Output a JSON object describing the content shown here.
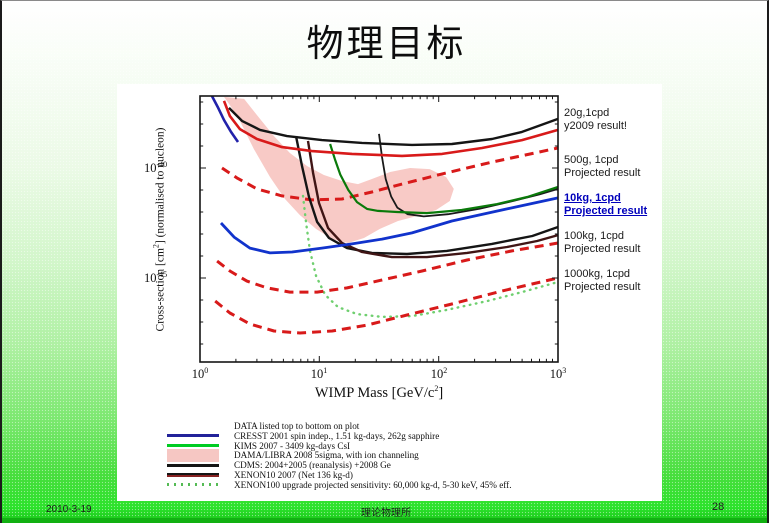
{
  "slide": {
    "title": "物理目标"
  },
  "footer": {
    "date": "2010-3-19",
    "org": "理论物理所",
    "page": "28"
  },
  "annotations": [
    {
      "key": "20g",
      "line1": "20g,1cpd",
      "line2": "y2009 result!",
      "highlight": false
    },
    {
      "key": "500g",
      "line1": "500g, 1cpd",
      "line2": "Projected result",
      "highlight": false
    },
    {
      "key": "10kg",
      "line1": "10kg, 1cpd",
      "line2": "Projected result",
      "highlight": true
    },
    {
      "key": "100kg",
      "line1": "100kg, 1cpd",
      "line2": "Projected result",
      "highlight": false
    },
    {
      "key": "1000kg",
      "line1": "1000kg, 1cpd",
      "line2": "Projected result",
      "highlight": false
    }
  ],
  "legend": {
    "rows": [
      {
        "swatch": "none",
        "color": "",
        "text": "DATA listed top to bottom on plot"
      },
      {
        "swatch": "line",
        "color": "#222299",
        "text": "CRESST 2001 spin indep., 1.51 kg-days, 262g sapphire"
      },
      {
        "swatch": "line",
        "color": "#00cc22",
        "text": "KIMS 2007 - 3409 kg-days CsI"
      },
      {
        "swatch": "rect",
        "color": "#f6c7c3",
        "text": "DAMA/LIBRA 2008 5sigma, with ion channeling"
      },
      {
        "swatch": "line",
        "color": "#151515",
        "text": "CDMS: 2004+2005 (reanalysis) +2008 Ge"
      },
      {
        "swatch": "dual",
        "color": "#151515",
        "color2": "#882222",
        "text": "XENON10 2007 (Net 136 kg-d)"
      },
      {
        "swatch": "dots",
        "color": "#55bb55",
        "text": "XENON100 upgrade projected sensitivity: 60,000 kg-d, 5-30 keV, 45% eff."
      }
    ]
  },
  "axes": {
    "x": {
      "title_base": "WIMP Mass [GeV/c",
      "title_sup": "2",
      "title_end": "]",
      "ticks": [
        {
          "base": "10",
          "sup": "0"
        },
        {
          "base": "10",
          "sup": "1"
        },
        {
          "base": "10",
          "sup": "2"
        },
        {
          "base": "10",
          "sup": "3"
        }
      ]
    },
    "y": {
      "title_base": "Cross-section [cm",
      "title_sup": "2",
      "title_end": "] (normalised to nucleon)",
      "ticks": [
        {
          "base": "10",
          "sup": "-40"
        },
        {
          "base": "10",
          "sup": "-45"
        }
      ]
    }
  },
  "chart_data": {
    "type": "line",
    "title": "",
    "xlabel": "WIMP Mass [GeV/c^2]",
    "ylabel": "Cross-section [cm^2] (normalised to nucleon)",
    "x_axis": {
      "scale": "log",
      "min": 1,
      "max": 1000,
      "major_ticks": [
        1,
        10,
        100,
        1000
      ]
    },
    "y_axis": {
      "scale": "log",
      "min_exp": -48.9,
      "max_exp": -36.7,
      "labeled_exps": [
        -40,
        -45
      ]
    },
    "grid": false,
    "legend_position": "below",
    "region": {
      "name": "DAMA/LIBRA 2008 5sigma allowed region (ion channeling)",
      "color": "#f8cac6",
      "points": [
        [
          1.59,
          -36.77
        ],
        [
          2.34,
          -36.86
        ],
        [
          3.18,
          -37.77
        ],
        [
          4.17,
          -38.55
        ],
        [
          5.67,
          -39.32
        ],
        [
          7.88,
          -39.91
        ],
        [
          10.93,
          -40.32
        ],
        [
          15.5,
          -40.59
        ],
        [
          21.1,
          -40.73
        ],
        [
          27.6,
          -40.5
        ],
        [
          39.2,
          -40.18
        ],
        [
          57.5,
          -40.0
        ],
        [
          84.2,
          -40.05
        ],
        [
          115.5,
          -40.41
        ],
        [
          134,
          -40.95
        ],
        [
          124,
          -41.5
        ],
        [
          95.2,
          -41.91
        ],
        [
          66,
          -42.18
        ],
        [
          45.6,
          -42.41
        ],
        [
          32.2,
          -42.77
        ],
        [
          23.7,
          -43.18
        ],
        [
          17.4,
          -43.41
        ],
        [
          12.8,
          -43.23
        ],
        [
          9.38,
          -42.77
        ],
        [
          6.88,
          -42.14
        ],
        [
          5.16,
          -41.41
        ],
        [
          3.86,
          -40.41
        ],
        [
          2.83,
          -39.14
        ],
        [
          2.16,
          -37.86
        ],
        [
          1.78,
          -37.14
        ]
      ]
    },
    "series": [
      {
        "name": "xenon100_projected_dotted",
        "color": "#6fcf6f",
        "width": 2.4,
        "style": "dots",
        "points": [
          [
            7.3,
            -41.27
          ],
          [
            7.74,
            -42.5
          ],
          [
            8.36,
            -43.77
          ],
          [
            9.39,
            -44.91
          ],
          [
            11.2,
            -45.77
          ],
          [
            14.3,
            -46.32
          ],
          [
            20.7,
            -46.64
          ],
          [
            33.6,
            -46.77
          ],
          [
            59.8,
            -46.73
          ],
          [
            117,
            -46.45
          ],
          [
            254,
            -46.05
          ],
          [
            499,
            -45.64
          ],
          [
            1000,
            -45.18
          ]
        ]
      },
      {
        "name": "projected_500g_red_dashed",
        "color": "#d81a1a",
        "width": 3,
        "style": "dash",
        "points": [
          [
            1.53,
            -40.0
          ],
          [
            2.04,
            -40.45
          ],
          [
            3.0,
            -40.95
          ],
          [
            4.87,
            -41.27
          ],
          [
            8.68,
            -41.45
          ],
          [
            15.5,
            -41.41
          ],
          [
            27.6,
            -41.09
          ],
          [
            49.3,
            -40.73
          ],
          [
            107,
            -40.27
          ],
          [
            280,
            -39.73
          ],
          [
            1000,
            -39.09
          ]
        ]
      },
      {
        "name": "projected_100kg_red_dashed",
        "color": "#d81a1a",
        "width": 3,
        "style": "dash",
        "points": [
          [
            1.39,
            -44.23
          ],
          [
            1.78,
            -44.68
          ],
          [
            2.47,
            -45.14
          ],
          [
            3.64,
            -45.45
          ],
          [
            5.67,
            -45.64
          ],
          [
            9.57,
            -45.64
          ],
          [
            17.1,
            -45.45
          ],
          [
            33.6,
            -45.09
          ],
          [
            72.7,
            -44.68
          ],
          [
            173,
            -44.18
          ],
          [
            412,
            -43.77
          ],
          [
            1000,
            -43.41
          ]
        ]
      },
      {
        "name": "projected_1000kg_red_dashed",
        "color": "#d81a1a",
        "width": 3,
        "style": "dash",
        "points": [
          [
            1.34,
            -46.05
          ],
          [
            1.78,
            -46.59
          ],
          [
            2.62,
            -47.09
          ],
          [
            4.17,
            -47.41
          ],
          [
            6.88,
            -47.5
          ],
          [
            12.8,
            -47.41
          ],
          [
            25.1,
            -47.14
          ],
          [
            54.3,
            -46.68
          ],
          [
            129,
            -46.18
          ],
          [
            339,
            -45.59
          ],
          [
            1000,
            -45.0
          ]
        ]
      },
      {
        "name": "kims_2007_black_companion",
        "color": "#1a1a1a",
        "width": 1.8,
        "style": "solid",
        "points": [
          [
            31.6,
            -38.45
          ],
          [
            33.5,
            -39.5
          ],
          [
            36,
            -40.5
          ],
          [
            40,
            -41.3
          ],
          [
            45,
            -41.8
          ],
          [
            55,
            -42.1
          ],
          [
            75,
            -42.2
          ],
          [
            120,
            -42.1
          ],
          [
            220,
            -41.85
          ],
          [
            420,
            -41.5
          ],
          [
            700,
            -41.2
          ],
          [
            1000,
            -40.95
          ]
        ]
      },
      {
        "name": "kims_2007_green",
        "color": "#0a7a0a",
        "width": 2.2,
        "style": "solid",
        "points": [
          [
            12.3,
            -38.91
          ],
          [
            13.5,
            -39.6
          ],
          [
            15.0,
            -40.3
          ],
          [
            17.5,
            -41.0
          ],
          [
            20.7,
            -41.55
          ],
          [
            25.1,
            -41.86
          ],
          [
            31,
            -41.95
          ],
          [
            44.8,
            -42.0
          ],
          [
            79.7,
            -42.05
          ],
          [
            156,
            -41.91
          ],
          [
            309,
            -41.64
          ],
          [
            552,
            -41.32
          ],
          [
            1000,
            -40.86
          ]
        ]
      },
      {
        "name": "cdms_2004_2005_2008_black",
        "color": "#151515",
        "width": 2.4,
        "style": "solid",
        "points": [
          [
            6.37,
            -38.55
          ],
          [
            7.16,
            -39.91
          ],
          [
            8.2,
            -41.32
          ],
          [
            9.57,
            -42.45
          ],
          [
            12.06,
            -43.18
          ],
          [
            17.1,
            -43.64
          ],
          [
            27.6,
            -43.86
          ],
          [
            54.3,
            -43.91
          ],
          [
            117,
            -43.77
          ],
          [
            280,
            -43.45
          ],
          [
            609,
            -43.09
          ],
          [
            1000,
            -42.68
          ]
        ]
      },
      {
        "name": "xenon10_2007_dark",
        "color": "#401515",
        "width": 2.4,
        "style": "solid",
        "points": [
          [
            8.03,
            -38.77
          ],
          [
            8.87,
            -40.23
          ],
          [
            9.94,
            -41.59
          ],
          [
            11.85,
            -42.73
          ],
          [
            15.5,
            -43.41
          ],
          [
            22.8,
            -43.82
          ],
          [
            40.6,
            -44.05
          ],
          [
            79.7,
            -44.05
          ],
          [
            173,
            -43.86
          ],
          [
            374,
            -43.59
          ],
          [
            668,
            -43.32
          ],
          [
            1000,
            -43.05
          ]
        ]
      },
      {
        "name": "result_20g_black",
        "color": "#151515",
        "width": 2.4,
        "style": "solid",
        "points": [
          [
            1.75,
            -37.27
          ],
          [
            2.25,
            -37.86
          ],
          [
            3.18,
            -38.27
          ],
          [
            5.36,
            -38.55
          ],
          [
            10.5,
            -38.73
          ],
          [
            22.8,
            -38.86
          ],
          [
            59.8,
            -38.95
          ],
          [
            129,
            -38.91
          ],
          [
            280,
            -38.68
          ],
          [
            499,
            -38.36
          ],
          [
            1000,
            -37.77
          ]
        ]
      },
      {
        "name": "result_20g_red_y2009",
        "color": "#d81a1a",
        "width": 2.6,
        "style": "solid",
        "points": [
          [
            1.59,
            -36.95
          ],
          [
            1.78,
            -37.64
          ],
          [
            2.16,
            -38.23
          ],
          [
            3.0,
            -38.68
          ],
          [
            4.87,
            -39.05
          ],
          [
            8.68,
            -39.23
          ],
          [
            18.8,
            -39.36
          ],
          [
            49.3,
            -39.45
          ],
          [
            107,
            -39.36
          ],
          [
            231,
            -39.09
          ],
          [
            499,
            -38.73
          ],
          [
            1000,
            -38.27
          ]
        ]
      },
      {
        "name": "cresst_2001_blue",
        "color": "#2222aa",
        "width": 2.6,
        "style": "solid",
        "points": [
          [
            1.26,
            -36.73
          ],
          [
            1.42,
            -37.27
          ],
          [
            1.59,
            -37.82
          ],
          [
            1.82,
            -38.36
          ],
          [
            2.08,
            -38.82
          ]
        ]
      },
      {
        "name": "projected_10kg_blue",
        "color": "#1133cc",
        "width": 2.8,
        "style": "solid",
        "points": [
          [
            1.5,
            -42.5
          ],
          [
            1.93,
            -43.14
          ],
          [
            2.62,
            -43.64
          ],
          [
            3.86,
            -43.86
          ],
          [
            5.91,
            -43.82
          ],
          [
            10.5,
            -43.64
          ],
          [
            18.8,
            -43.45
          ],
          [
            33.6,
            -43.23
          ],
          [
            59.8,
            -42.95
          ],
          [
            129,
            -42.41
          ],
          [
            339,
            -41.91
          ],
          [
            1000,
            -41.36
          ]
        ]
      }
    ]
  }
}
